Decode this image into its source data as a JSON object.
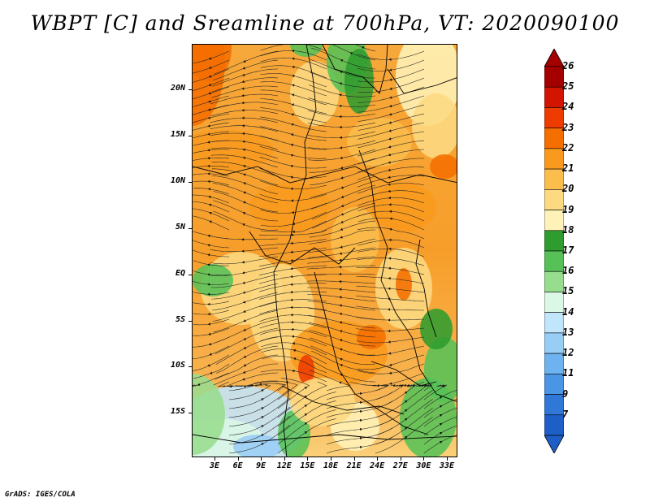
{
  "title": "WBPT [C] and Sreamline at 700hPa, VT: 2020090100",
  "credit": "GrADS: IGES/COLA",
  "map": {
    "lat_labels": [
      "20N",
      "15N",
      "10N",
      "5N",
      "EQ",
      "5S",
      "10S",
      "15S"
    ],
    "lon_labels": [
      "3E",
      "6E",
      "9E",
      "12E",
      "15E",
      "18E",
      "21E",
      "24E",
      "27E",
      "30E",
      "33E"
    ],
    "field": "WBPT",
    "units": "C",
    "level": "700hPa",
    "valid_time": "2020090100"
  },
  "colorbar": {
    "labels": [
      "26",
      "25",
      "24",
      "23",
      "22",
      "21",
      "20",
      "19",
      "18",
      "17",
      "16",
      "15",
      "14",
      "13",
      "12",
      "11",
      "9",
      "7"
    ],
    "colors": [
      "#a50000",
      "#d21400",
      "#ee3c00",
      "#f56e00",
      "#f99a1e",
      "#fbbd4c",
      "#fdda82",
      "#fff2b8",
      "#2f9c2f",
      "#56c156",
      "#97dd8e",
      "#dbf7e6",
      "#c1e5fb",
      "#98cdf6",
      "#6db3f0",
      "#4a96e4",
      "#2f78d7",
      "#1e5fc7"
    ]
  }
}
